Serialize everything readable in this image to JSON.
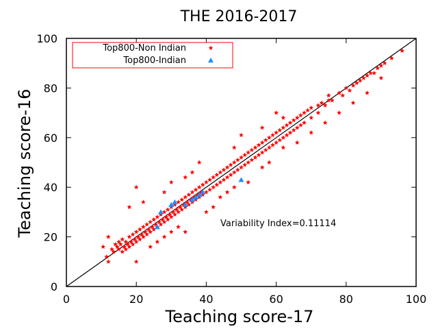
{
  "chart_data": {
    "type": "scatter",
    "title": "THE 2016-2017",
    "xlabel": "Teaching score-17",
    "ylabel": "Teaching score-16",
    "xlim": [
      0,
      100
    ],
    "ylim": [
      0,
      100
    ],
    "xticks": [
      "0",
      "20",
      "40",
      "60",
      "80",
      "100"
    ],
    "yticks": [
      "0",
      "20",
      "40",
      "60",
      "80",
      "100"
    ],
    "grid": false,
    "legend_position": "top-left",
    "reference_line": {
      "x": [
        0,
        100
      ],
      "y": [
        0,
        100
      ],
      "color": "#000000"
    },
    "annotation": "Variability Index=0.11114",
    "series": [
      {
        "name": "Top800-Non Indian",
        "marker": "star",
        "color": "#ff0000",
        "points": [
          [
            10.5,
            16
          ],
          [
            11.5,
            12
          ],
          [
            12,
            10
          ],
          [
            13,
            15
          ],
          [
            13.5,
            14
          ],
          [
            14,
            17
          ],
          [
            14.5,
            16
          ],
          [
            15,
            18
          ],
          [
            15,
            15
          ],
          [
            15.5,
            17
          ],
          [
            16,
            14
          ],
          [
            16,
            19
          ],
          [
            16.5,
            16
          ],
          [
            17,
            18
          ],
          [
            17,
            15
          ],
          [
            17.5,
            17
          ],
          [
            18,
            20
          ],
          [
            18,
            16
          ],
          [
            18.5,
            18
          ],
          [
            19,
            21
          ],
          [
            19,
            17
          ],
          [
            19.5,
            19
          ],
          [
            20,
            22
          ],
          [
            20,
            18
          ],
          [
            20.5,
            20
          ],
          [
            21,
            23
          ],
          [
            21,
            19
          ],
          [
            21.5,
            21
          ],
          [
            22,
            24
          ],
          [
            22,
            20
          ],
          [
            22.5,
            22
          ],
          [
            23,
            25
          ],
          [
            23,
            21
          ],
          [
            23.5,
            23
          ],
          [
            24,
            26
          ],
          [
            24,
            22
          ],
          [
            24.5,
            24
          ],
          [
            25,
            27
          ],
          [
            25,
            23
          ],
          [
            25.5,
            25
          ],
          [
            26,
            28
          ],
          [
            26,
            24
          ],
          [
            26.5,
            26
          ],
          [
            27,
            29
          ],
          [
            27,
            25
          ],
          [
            27.5,
            27
          ],
          [
            28,
            30
          ],
          [
            28,
            26
          ],
          [
            28.5,
            28
          ],
          [
            29,
            31
          ],
          [
            29,
            27
          ],
          [
            29.5,
            29
          ],
          [
            30,
            32
          ],
          [
            30,
            28
          ],
          [
            30.5,
            30
          ],
          [
            31,
            33
          ],
          [
            31,
            29
          ],
          [
            31.5,
            31
          ],
          [
            32,
            34
          ],
          [
            32,
            30
          ],
          [
            32.5,
            32
          ],
          [
            33,
            35
          ],
          [
            33,
            31
          ],
          [
            33.5,
            33
          ],
          [
            34,
            36
          ],
          [
            34,
            32
          ],
          [
            34.5,
            34
          ],
          [
            35,
            37
          ],
          [
            35,
            33
          ],
          [
            35.5,
            35
          ],
          [
            36,
            38
          ],
          [
            36,
            34
          ],
          [
            36.5,
            36
          ],
          [
            37,
            39
          ],
          [
            37,
            35
          ],
          [
            37.5,
            37
          ],
          [
            38,
            40
          ],
          [
            38,
            36
          ],
          [
            38.5,
            38
          ],
          [
            39,
            41
          ],
          [
            39,
            37
          ],
          [
            40,
            42
          ],
          [
            40,
            38
          ],
          [
            41,
            43
          ],
          [
            41,
            39
          ],
          [
            42,
            44
          ],
          [
            42,
            40
          ],
          [
            43,
            45
          ],
          [
            43,
            41
          ],
          [
            44,
            46
          ],
          [
            44,
            42
          ],
          [
            45,
            47
          ],
          [
            45,
            43
          ],
          [
            46,
            48
          ],
          [
            46,
            44
          ],
          [
            47,
            49
          ],
          [
            47,
            45
          ],
          [
            48,
            50
          ],
          [
            48,
            46
          ],
          [
            49,
            51
          ],
          [
            49,
            47
          ],
          [
            50,
            52
          ],
          [
            50,
            48
          ],
          [
            51,
            53
          ],
          [
            51,
            49
          ],
          [
            52,
            54
          ],
          [
            52,
            50
          ],
          [
            53,
            55
          ],
          [
            53,
            51
          ],
          [
            54,
            56
          ],
          [
            54,
            52
          ],
          [
            55,
            57
          ],
          [
            55,
            53
          ],
          [
            56,
            58
          ],
          [
            56,
            54
          ],
          [
            57,
            59
          ],
          [
            57,
            55
          ],
          [
            58,
            60
          ],
          [
            58,
            56
          ],
          [
            59,
            61
          ],
          [
            59,
            57
          ],
          [
            60,
            62
          ],
          [
            60,
            58
          ],
          [
            61,
            63
          ],
          [
            61,
            59
          ],
          [
            62,
            64
          ],
          [
            62,
            60
          ],
          [
            63,
            65
          ],
          [
            63,
            61
          ],
          [
            64,
            66
          ],
          [
            64,
            62
          ],
          [
            65,
            67
          ],
          [
            65,
            63
          ],
          [
            66,
            68
          ],
          [
            66,
            64
          ],
          [
            67,
            69
          ],
          [
            67,
            65
          ],
          [
            68,
            70
          ],
          [
            68,
            66
          ],
          [
            69,
            71
          ],
          [
            70,
            72
          ],
          [
            70,
            68
          ],
          [
            72,
            73
          ],
          [
            72,
            70
          ],
          [
            73,
            74
          ],
          [
            74,
            73
          ],
          [
            75,
            77
          ],
          [
            75,
            75
          ],
          [
            76,
            75
          ],
          [
            78,
            78
          ],
          [
            79,
            77
          ],
          [
            80,
            80
          ],
          [
            81,
            79
          ],
          [
            82,
            81
          ],
          [
            83,
            82
          ],
          [
            84,
            83
          ],
          [
            85,
            84
          ],
          [
            86,
            85
          ],
          [
            87,
            86
          ],
          [
            88,
            86
          ],
          [
            89,
            88
          ],
          [
            90,
            89
          ],
          [
            91,
            90
          ],
          [
            93,
            92
          ],
          [
            96,
            95
          ],
          [
            12,
            20
          ],
          [
            18,
            32
          ],
          [
            20,
            40
          ],
          [
            22,
            34
          ],
          [
            28,
            38
          ],
          [
            30,
            42
          ],
          [
            34,
            44
          ],
          [
            36,
            46
          ],
          [
            38,
            50
          ],
          [
            48,
            56
          ],
          [
            50,
            61
          ],
          [
            56,
            64
          ],
          [
            60,
            70
          ],
          [
            62,
            68
          ],
          [
            20,
            10
          ],
          [
            24,
            16
          ],
          [
            26,
            18
          ],
          [
            28,
            20
          ],
          [
            30,
            22
          ],
          [
            32,
            24
          ],
          [
            34,
            22
          ],
          [
            40,
            30
          ],
          [
            42,
            32
          ],
          [
            44,
            36
          ],
          [
            46,
            38
          ],
          [
            48,
            40
          ],
          [
            52,
            42
          ],
          [
            56,
            48
          ],
          [
            58,
            50
          ],
          [
            62,
            56
          ],
          [
            66,
            58
          ],
          [
            70,
            62
          ],
          [
            74,
            66
          ],
          [
            78,
            70
          ],
          [
            82,
            74
          ],
          [
            86,
            78
          ],
          [
            90,
            84
          ]
        ]
      },
      {
        "name": "Top800-Indian",
        "marker": "triangle",
        "color": "#1e8fff",
        "points": [
          [
            26,
            24
          ],
          [
            27,
            30
          ],
          [
            30,
            33
          ],
          [
            31,
            34
          ],
          [
            34,
            33
          ],
          [
            36,
            35
          ],
          [
            37,
            36
          ],
          [
            38,
            37
          ],
          [
            39,
            38
          ],
          [
            50,
            43
          ]
        ]
      }
    ]
  }
}
